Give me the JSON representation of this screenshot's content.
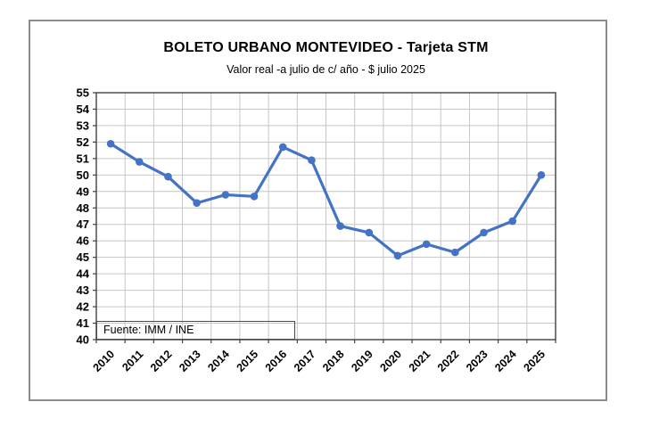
{
  "chart_data": {
    "type": "line",
    "title": "BOLETO URBANO MONTEVIDEO - Tarjeta STM",
    "subtitle": "Valor real -a julio de c/ año - $ julio 2025",
    "source_note": "Fuente: IMM / INE",
    "categories": [
      "2010",
      "2011",
      "2012",
      "2013",
      "2014",
      "2015",
      "2016",
      "2017",
      "2018",
      "2019",
      "2020",
      "2021",
      "2022",
      "2023",
      "2024",
      "2025"
    ],
    "values": [
      51.9,
      50.8,
      49.9,
      48.3,
      48.8,
      48.7,
      51.7,
      50.9,
      46.9,
      46.5,
      45.1,
      45.8,
      45.3,
      46.5,
      47.2,
      50.0
    ],
    "ylim": [
      40,
      55
    ],
    "ytick_step": 1,
    "grid": true,
    "legend": false,
    "marker": "circle",
    "colors": {
      "line": "#4472C4",
      "grid": "#c6c6c6",
      "axis": "#404040",
      "text": "#000000",
      "frame_border": "#8c8c8c"
    }
  }
}
